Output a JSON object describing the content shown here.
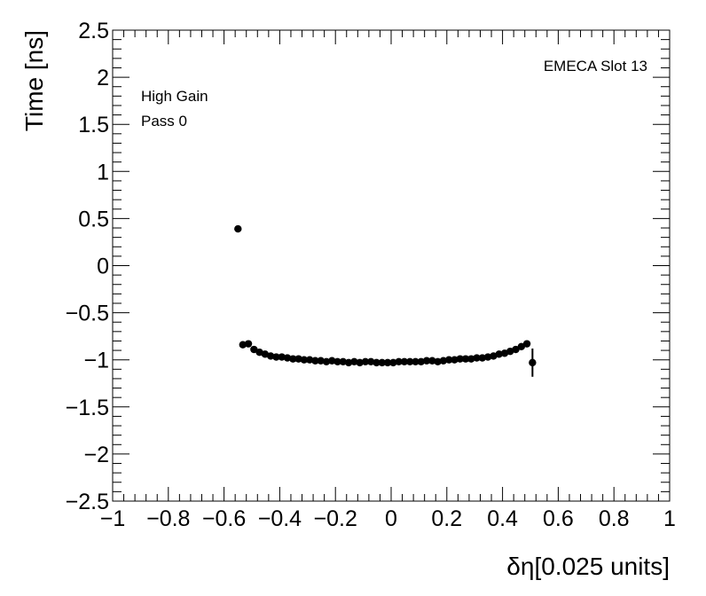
{
  "chart_data": {
    "type": "scatter",
    "title": "",
    "xlabel": "δη[0.025 units]",
    "ylabel": "Time [ns]",
    "xlim": [
      -1,
      1
    ],
    "ylim": [
      -2.5,
      2.5
    ],
    "x_major_ticks": [
      -1,
      -0.8,
      -0.6,
      -0.4,
      -0.2,
      0,
      0.2,
      0.4,
      0.6,
      0.8,
      1
    ],
    "x_tick_labels": [
      "−1",
      "−0.8",
      "−0.6",
      "−0.4",
      "−0.2",
      "0",
      "0.2",
      "0.4",
      "0.6",
      "0.8",
      "1"
    ],
    "y_major_ticks": [
      -2.5,
      -2,
      -1.5,
      -1,
      -0.5,
      0,
      0.5,
      1,
      1.5,
      2,
      2.5
    ],
    "y_tick_labels": [
      "−2.5",
      "−2",
      "−1.5",
      "−1",
      "−0.5",
      "0",
      "0.5",
      "1",
      "1.5",
      "2",
      "2.5"
    ],
    "grid": false,
    "annotations": [
      {
        "text": "EMECA Slot 13",
        "placement": "top-right"
      },
      {
        "text": "High Gain",
        "placement": "top-left"
      },
      {
        "text": "Pass 0",
        "placement": "top-left"
      }
    ],
    "series": [
      {
        "marker": "filled-circle",
        "color": "#000000",
        "points": [
          {
            "x": -0.55,
            "y": 0.39
          },
          {
            "x": -0.5325,
            "y": -0.84
          },
          {
            "x": -0.5125,
            "y": -0.83
          },
          {
            "x": -0.4925,
            "y": -0.89
          },
          {
            "x": -0.4725,
            "y": -0.92
          },
          {
            "x": -0.4525,
            "y": -0.94
          },
          {
            "x": -0.4325,
            "y": -0.96
          },
          {
            "x": -0.4125,
            "y": -0.97
          },
          {
            "x": -0.3925,
            "y": -0.97
          },
          {
            "x": -0.3725,
            "y": -0.98
          },
          {
            "x": -0.3525,
            "y": -0.99
          },
          {
            "x": -0.3325,
            "y": -0.99
          },
          {
            "x": -0.3125,
            "y": -1.0
          },
          {
            "x": -0.2925,
            "y": -1.0
          },
          {
            "x": -0.2725,
            "y": -1.01
          },
          {
            "x": -0.2525,
            "y": -1.01
          },
          {
            "x": -0.2325,
            "y": -1.02
          },
          {
            "x": -0.2125,
            "y": -1.01
          },
          {
            "x": -0.1925,
            "y": -1.02
          },
          {
            "x": -0.1725,
            "y": -1.02
          },
          {
            "x": -0.1525,
            "y": -1.03
          },
          {
            "x": -0.1325,
            "y": -1.02
          },
          {
            "x": -0.1125,
            "y": -1.03
          },
          {
            "x": -0.0925,
            "y": -1.02
          },
          {
            "x": -0.0725,
            "y": -1.02
          },
          {
            "x": -0.0525,
            "y": -1.03
          },
          {
            "x": -0.0325,
            "y": -1.03
          },
          {
            "x": -0.0125,
            "y": -1.03
          },
          {
            "x": 0.0075,
            "y": -1.03
          },
          {
            "x": 0.0275,
            "y": -1.02
          },
          {
            "x": 0.0475,
            "y": -1.02
          },
          {
            "x": 0.0675,
            "y": -1.02
          },
          {
            "x": 0.0875,
            "y": -1.02
          },
          {
            "x": 0.1075,
            "y": -1.02
          },
          {
            "x": 0.1275,
            "y": -1.01
          },
          {
            "x": 0.1475,
            "y": -1.01
          },
          {
            "x": 0.1675,
            "y": -1.02
          },
          {
            "x": 0.1875,
            "y": -1.01
          },
          {
            "x": 0.2075,
            "y": -1.0
          },
          {
            "x": 0.2275,
            "y": -1.0
          },
          {
            "x": 0.2475,
            "y": -0.99
          },
          {
            "x": 0.2675,
            "y": -0.99
          },
          {
            "x": 0.2875,
            "y": -0.99
          },
          {
            "x": 0.3075,
            "y": -0.98
          },
          {
            "x": 0.3275,
            "y": -0.98
          },
          {
            "x": 0.3475,
            "y": -0.97
          },
          {
            "x": 0.3675,
            "y": -0.96
          },
          {
            "x": 0.3875,
            "y": -0.94
          },
          {
            "x": 0.4075,
            "y": -0.93
          },
          {
            "x": 0.4275,
            "y": -0.91
          },
          {
            "x": 0.4475,
            "y": -0.89
          },
          {
            "x": 0.4675,
            "y": -0.86
          },
          {
            "x": 0.4875,
            "y": -0.83
          },
          {
            "x": 0.5075,
            "y": -1.03,
            "err": 0.15
          }
        ]
      }
    ]
  }
}
